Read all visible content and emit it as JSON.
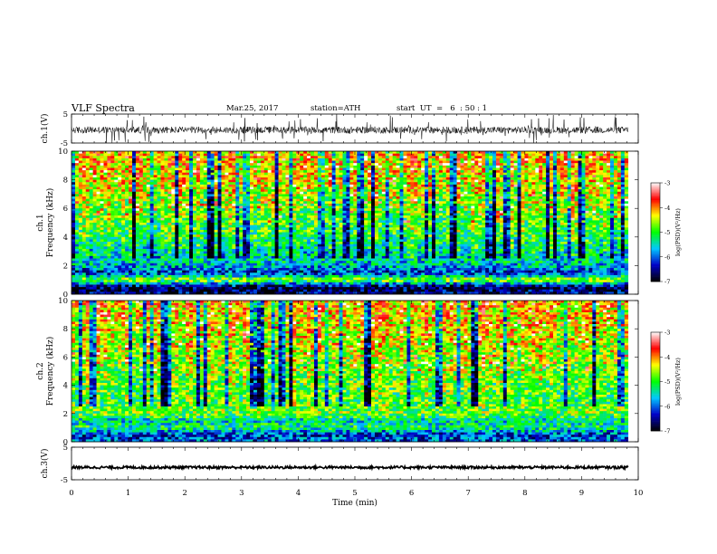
{
  "header": {
    "title": "VLF  Spectra",
    "date": "Mar.25, 2017",
    "station": "station=ATH",
    "start": "start  UT  =   6  : 50 : 1"
  },
  "chart_data": [
    {
      "type": "line",
      "panel": "ch1-waveform",
      "ylabel": "ch.1(V)",
      "ylim": [
        -5,
        5
      ],
      "yticks": [
        "5",
        "-5"
      ],
      "xlim": [
        0,
        10
      ],
      "data_extent_min": [
        0,
        9.82
      ],
      "baseline_v": -0.5,
      "spread_v": 1.2,
      "note_color": "#000000"
    },
    {
      "type": "heatmap",
      "panel": "ch1-spectrogram",
      "ylabel_lines": [
        "ch.1",
        "Frequency  (kHz)"
      ],
      "ylim": [
        0,
        10
      ],
      "yticks": [
        "0",
        "2",
        "4",
        "6",
        "8",
        "10"
      ],
      "xlim": [
        0,
        10
      ],
      "data_extent_min": [
        0,
        9.82
      ],
      "colorbar": {
        "label": "log(PSD)(V²/Hz)",
        "range": [
          -7,
          -3
        ],
        "ticks": [
          "-3",
          "-4",
          "-5",
          "-6",
          "-7"
        ],
        "colors": [
          "#000000",
          "#0000c8",
          "#00c8ff",
          "#00ff00",
          "#ffff00",
          "#ff0000",
          "#ffffff"
        ]
      },
      "levels_by_freq_khz": [
        {
          "f": 0.0,
          "level": -6.5
        },
        {
          "f": 0.5,
          "level": -6.8
        },
        {
          "f": 1.0,
          "level": -4.6
        },
        {
          "f": 1.5,
          "level": -6.3
        },
        {
          "f": 2.0,
          "level": -5.6
        },
        {
          "f": 3.0,
          "level": -5.4
        },
        {
          "f": 4.0,
          "level": -5.0
        },
        {
          "f": 6.0,
          "level": -4.7
        },
        {
          "f": 8.0,
          "level": -4.3
        },
        {
          "f": 10.0,
          "level": -4.1
        }
      ]
    },
    {
      "type": "heatmap",
      "panel": "ch2-spectrogram",
      "ylabel_lines": [
        "ch.2",
        "Frequency  (kHz)"
      ],
      "ylim": [
        0,
        10
      ],
      "yticks": [
        "0",
        "2",
        "4",
        "6",
        "8",
        "10"
      ],
      "xlim": [
        0,
        10
      ],
      "data_extent_min": [
        0,
        9.82
      ],
      "colorbar": {
        "label": "log(PSD)(V²/Hz)",
        "range": [
          -7,
          -3
        ],
        "ticks": [
          "-3",
          "-4",
          "-5",
          "-6",
          "-7"
        ],
        "colors": [
          "#000000",
          "#0000c8",
          "#00c8ff",
          "#00ff00",
          "#ffff00",
          "#ff0000",
          "#ffffff"
        ]
      },
      "levels_by_freq_khz": [
        {
          "f": 0.0,
          "level": -6.0
        },
        {
          "f": 0.5,
          "level": -6.2
        },
        {
          "f": 1.0,
          "level": -5.2
        },
        {
          "f": 1.5,
          "level": -5.5
        },
        {
          "f": 2.0,
          "level": -4.8
        },
        {
          "f": 3.0,
          "level": -4.9
        },
        {
          "f": 4.0,
          "level": -4.8
        },
        {
          "f": 6.0,
          "level": -4.6
        },
        {
          "f": 8.0,
          "level": -4.3
        },
        {
          "f": 10.0,
          "level": -4.1
        }
      ]
    },
    {
      "type": "line",
      "panel": "ch3-waveform",
      "ylabel": "ch.3(V)",
      "ylim": [
        -5,
        5
      ],
      "yticks": [
        "5",
        "-5"
      ],
      "xlim": [
        0,
        10
      ],
      "data_extent_min": [
        0,
        9.82
      ],
      "baseline_v": -1.2,
      "spread_v": 0.4,
      "xlabel": "Time  (min)",
      "xticks": [
        "0",
        "1",
        "2",
        "3",
        "4",
        "5",
        "6",
        "7",
        "8",
        "9",
        "10"
      ]
    }
  ]
}
